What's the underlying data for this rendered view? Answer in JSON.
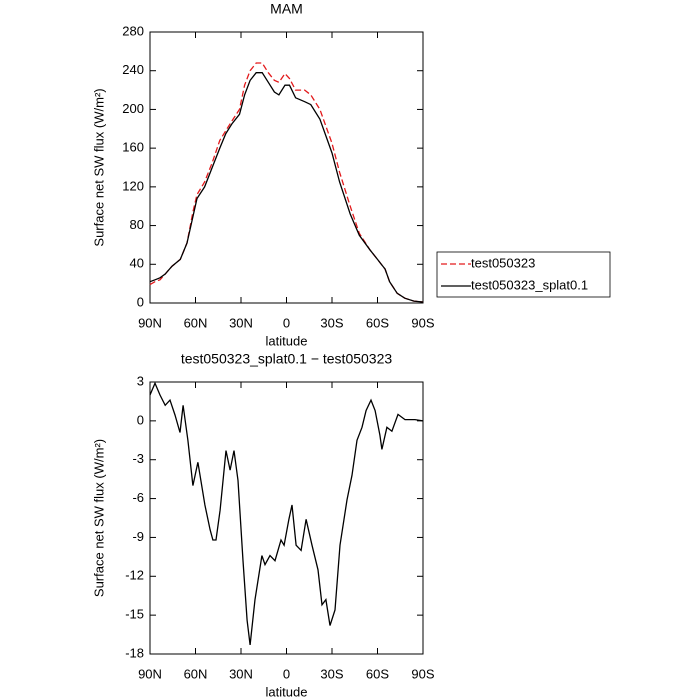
{
  "chart_data": [
    {
      "type": "line",
      "title": "MAM",
      "x_label": "latitude",
      "y_label": "Surface net SW flux (W/m²)",
      "x": [
        90,
        86.7,
        83.4,
        80,
        75.5,
        70,
        65.6,
        61.6,
        59,
        54,
        49,
        44,
        40,
        36,
        31,
        27.6,
        24,
        20,
        16,
        12,
        8,
        5,
        1,
        -2,
        -6,
        -12,
        -16,
        -22,
        -30,
        -35,
        -42,
        -48,
        -55,
        -60,
        -65,
        -68,
        -73,
        -78,
        -84,
        -90
      ],
      "series": [
        {
          "name": "test050323",
          "color": "#e31a1c",
          "dash": true,
          "values": [
            19,
            22,
            24,
            30,
            38,
            45,
            62,
            95,
            112,
            125,
            145,
            168,
            178,
            188,
            200,
            225,
            240,
            248,
            248,
            238,
            230,
            228,
            237,
            232,
            220,
            220,
            215,
            200,
            165,
            135,
            100,
            72,
            55,
            45,
            35,
            22,
            10,
            5,
            2,
            1
          ]
        },
        {
          "name": "test050323_splat0.1",
          "color": "#000000",
          "dash": false,
          "values": [
            22,
            24,
            26,
            30,
            38,
            45,
            62,
            90,
            108,
            120,
            140,
            160,
            175,
            185,
            195,
            215,
            230,
            238,
            238,
            228,
            218,
            215,
            225,
            225,
            212,
            208,
            205,
            190,
            155,
            125,
            92,
            70,
            55,
            45,
            35,
            22,
            10,
            5,
            2,
            1
          ]
        }
      ],
      "xlim": [
        90,
        -90
      ],
      "xticks": [
        {
          "value": 90,
          "label": "90N"
        },
        {
          "value": 60,
          "label": "60N"
        },
        {
          "value": 30,
          "label": "30N"
        },
        0,
        {
          "value": -30,
          "label": "30S"
        },
        {
          "value": -60,
          "label": "60S"
        },
        {
          "value": -90,
          "label": "90S"
        }
      ],
      "ylim": [
        0,
        280
      ],
      "yticks": [
        0,
        40,
        80,
        120,
        160,
        200,
        240,
        280
      ],
      "legend": "right"
    },
    {
      "type": "line",
      "title": "test050323_splat0.1 − test050323",
      "x_label": "latitude",
      "y_label": "Surface net SW flux (W/m²)",
      "x": [
        90,
        86.7,
        83.4,
        80,
        76.8,
        73.5,
        70.2,
        68.2,
        65,
        61.7,
        58.4,
        53.8,
        50.4,
        48.5,
        46.5,
        43.8,
        39.9,
        37.2,
        34.6,
        32,
        28.7,
        26,
        24,
        20.8,
        16.2,
        14.2,
        10.9,
        7.6,
        3.6,
        1.6,
        -1.6,
        -3.6,
        -6.3,
        -9.6,
        -12.9,
        -16.8,
        -20.8,
        -23.4,
        -26,
        -28.7,
        -32,
        -35.3,
        -39.9,
        -43.2,
        -46.5,
        -49.8,
        -52.5,
        -55.7,
        -58.4,
        -61.6,
        -62.9,
        -66.2,
        -69.5,
        -73.5,
        -78.1,
        -84.7,
        -90
      ],
      "values": [
        2,
        2.9,
        2,
        1.2,
        1.6,
        0.45,
        -0.9,
        1.2,
        -1.5,
        -5,
        -3.2,
        -6.5,
        -8.4,
        -9.2,
        -9.2,
        -6.9,
        -2.3,
        -3.8,
        -2.3,
        -4.6,
        -10.8,
        -15.4,
        -17.3,
        -13.8,
        -10.4,
        -11.1,
        -10.4,
        -10.8,
        -9.2,
        -9.6,
        -7.6,
        -6.5,
        -9.6,
        -10,
        -7.6,
        -9.6,
        -11.5,
        -14.2,
        -13.8,
        -15.8,
        -14.6,
        -9.6,
        -6.1,
        -4.2,
        -1.5,
        -0.5,
        0.8,
        1.6,
        0.8,
        -1.1,
        -2.2,
        -0.5,
        -0.8,
        0.5,
        0.1,
        0.1,
        0
      ],
      "color": "#000000",
      "xlim": [
        90,
        -90
      ],
      "xticks": [
        {
          "value": 90,
          "label": "90N"
        },
        {
          "value": 60,
          "label": "60N"
        },
        {
          "value": 30,
          "label": "30N"
        },
        0,
        {
          "value": -30,
          "label": "30S"
        },
        {
          "value": -60,
          "label": "60S"
        },
        {
          "value": -90,
          "label": "90S"
        }
      ],
      "ylim": [
        -18,
        3
      ],
      "yticks": [
        -18,
        -15,
        -12,
        -9,
        -6,
        -3,
        0,
        3
      ]
    }
  ]
}
